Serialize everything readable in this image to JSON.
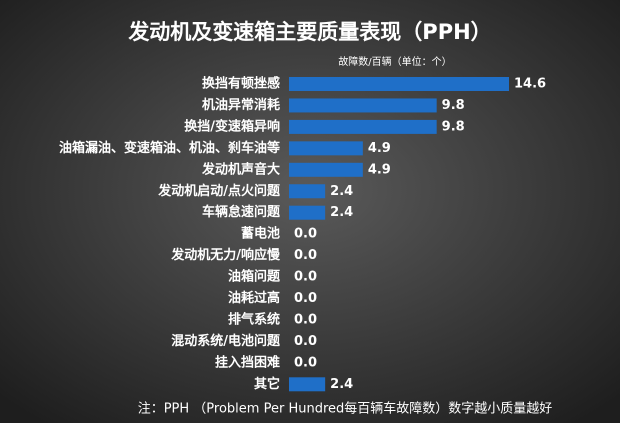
{
  "chart_data": {
    "type": "bar",
    "orientation": "horizontal",
    "title": "发动机及变速箱主要质量表现（PPH）",
    "subtitle": "故障数/百辆（单位：个）",
    "footnote": "注：PPH （Problem Per Hundred每百辆车故障数）数字越小质量越好",
    "categories": [
      "换挡有顿挫感",
      "机油异常消耗",
      "换挡/变速箱异响",
      "油箱漏油、变速箱油、机油、刹车油等",
      "发动机声音大",
      "发动机启动/点火问题",
      "车辆怠速问题",
      "蓄电池",
      "发动机无力/响应慢",
      "油箱问题",
      "油耗过高",
      "排气系统",
      "混动系统/电池问题",
      "挂入挡困难",
      "其它"
    ],
    "values": [
      14.6,
      9.8,
      9.8,
      4.9,
      4.9,
      2.4,
      2.4,
      0,
      0,
      0,
      0,
      0,
      0,
      0,
      2.4
    ],
    "value_labels": [
      "14.6",
      "9.8",
      "9.8",
      "4.9",
      "4.9",
      "2.4",
      "2.4",
      "0.0",
      "0.0",
      "0.0",
      "0.0",
      "0.0",
      "0.0",
      "0.0",
      "2.4"
    ],
    "color": "#1f6fc8"
  }
}
